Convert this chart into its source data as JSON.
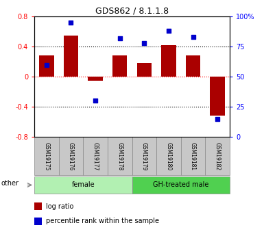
{
  "title": "GDS862 / 8.1.1.8",
  "samples": [
    "GSM19175",
    "GSM19176",
    "GSM19177",
    "GSM19178",
    "GSM19179",
    "GSM19180",
    "GSM19181",
    "GSM19182"
  ],
  "log_ratio": [
    0.28,
    0.55,
    -0.05,
    0.28,
    0.18,
    0.42,
    0.28,
    -0.52
  ],
  "percentile": [
    60,
    95,
    30,
    82,
    78,
    88,
    83,
    15
  ],
  "groups": [
    {
      "label": "female",
      "start": 0,
      "end": 4,
      "color": "#b2f0b2"
    },
    {
      "label": "GH-treated male",
      "start": 4,
      "end": 8,
      "color": "#50d050"
    }
  ],
  "bar_color": "#AA0000",
  "dot_color": "#0000CC",
  "ylim_left": [
    -0.8,
    0.8
  ],
  "ylim_right": [
    0,
    100
  ],
  "yticks_left": [
    -0.8,
    -0.4,
    0.0,
    0.4,
    0.8
  ],
  "yticks_right": [
    0,
    25,
    50,
    75,
    100
  ],
  "legend_labels": [
    "log ratio",
    "percentile rank within the sample"
  ],
  "legend_colors": [
    "#AA0000",
    "#0000CC"
  ],
  "other_label": "other",
  "sample_box_color": "#c8c8c8",
  "background_color": "#ffffff"
}
